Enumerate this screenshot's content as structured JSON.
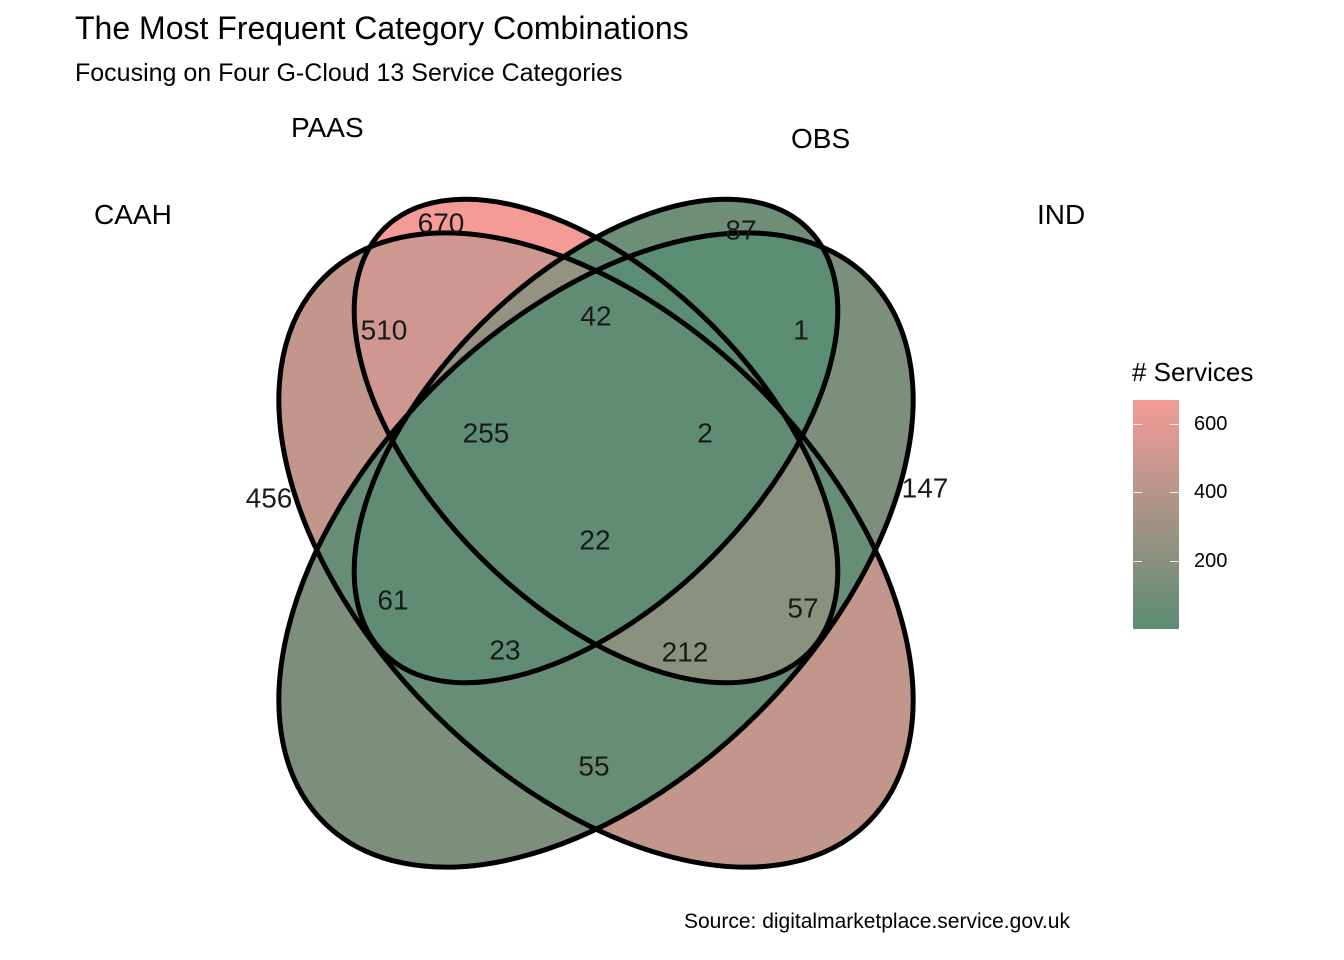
{
  "title": "The Most Frequent Category Combinations",
  "subtitle": "Focusing on Four G-Cloud 13 Service Categories",
  "caption": "Source: digitalmarketplace.service.gov.uk",
  "sets": [
    {
      "label": "CAAH"
    },
    {
      "label": "PAAS"
    },
    {
      "label": "OBS"
    },
    {
      "label": "IND"
    }
  ],
  "regions": [
    {
      "sets": [
        "CAAH"
      ],
      "count": "456"
    },
    {
      "sets": [
        "PAAS"
      ],
      "count": "670"
    },
    {
      "sets": [
        "OBS"
      ],
      "count": "87"
    },
    {
      "sets": [
        "IND"
      ],
      "count": "147"
    },
    {
      "sets": [
        "CAAH",
        "PAAS"
      ],
      "count": "510"
    },
    {
      "sets": [
        "PAAS",
        "OBS"
      ],
      "count": "42"
    },
    {
      "sets": [
        "OBS",
        "IND"
      ],
      "count": "1"
    },
    {
      "sets": [
        "CAAH",
        "PAAS",
        "OBS"
      ],
      "count": "255"
    },
    {
      "sets": [
        "PAAS",
        "OBS",
        "IND"
      ],
      "count": "2"
    },
    {
      "sets": [
        "CAAH",
        "OBS"
      ],
      "count": "61"
    },
    {
      "sets": [
        "PAAS",
        "IND"
      ],
      "count": "57"
    },
    {
      "sets": [
        "CAAH",
        "PAAS",
        "OBS",
        "IND"
      ],
      "count": "22"
    },
    {
      "sets": [
        "CAAH",
        "OBS",
        "IND"
      ],
      "count": "23"
    },
    {
      "sets": [
        "CAAH",
        "PAAS",
        "IND"
      ],
      "count": "212"
    },
    {
      "sets": [
        "CAAH",
        "IND"
      ],
      "count": "55"
    }
  ],
  "legend": {
    "title": "# Services",
    "ticks": [
      {
        "value": 600,
        "label": "600"
      },
      {
        "value": 400,
        "label": "400"
      },
      {
        "value": 200,
        "label": "200"
      }
    ],
    "range": [
      1,
      670
    ],
    "color_low": "#5b8c74",
    "color_high": "#f49b97"
  }
}
